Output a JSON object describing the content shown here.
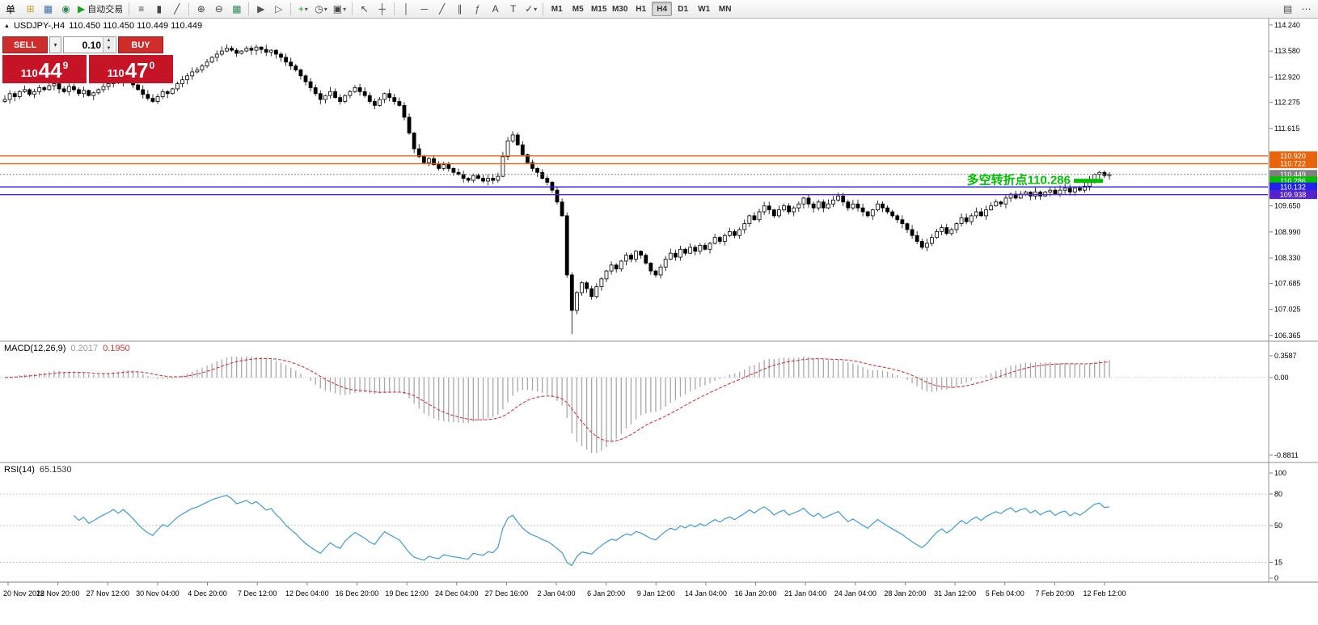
{
  "toolbar": {
    "menu_label": "单",
    "auto_trading_label": "自动交易",
    "buttons": [
      {
        "name": "new-order",
        "glyph": "⊞",
        "color": "#c8a126"
      },
      {
        "name": "chart-window",
        "glyph": "▦",
        "color": "#3a6ea5"
      },
      {
        "name": "market-watch",
        "glyph": "◉",
        "color": "#2e8b57"
      },
      {
        "name": "auto-trading",
        "glyph": "▶",
        "color": "#1fa11f",
        "label": true
      },
      {
        "sep": true
      },
      {
        "name": "bar-chart",
        "glyph": "≡"
      },
      {
        "name": "candlestick-chart",
        "glyph": "▮"
      },
      {
        "name": "line-chart",
        "glyph": "╱"
      },
      {
        "sep": true
      },
      {
        "name": "zoom-in",
        "glyph": "⊕"
      },
      {
        "name": "zoom-out",
        "glyph": "⊖"
      },
      {
        "name": "tile-windows",
        "glyph": "▦",
        "color": "#2e8b57"
      },
      {
        "sep": true
      },
      {
        "name": "auto-scroll",
        "glyph": "▶",
        "color": "#555"
      },
      {
        "name": "chart-shift",
        "glyph": "▷",
        "color": "#555"
      },
      {
        "sep": true
      },
      {
        "name": "add-indicator",
        "glyph": "+",
        "color": "#1fa11f",
        "dropdown": true
      },
      {
        "name": "periods-menu",
        "glyph": "◷",
        "dropdown": true
      },
      {
        "name": "templates-menu",
        "glyph": "▣",
        "dropdown": true
      },
      {
        "sep": true
      },
      {
        "name": "cursor",
        "glyph": "↖"
      },
      {
        "name": "crosshair",
        "glyph": "┼"
      },
      {
        "sep": true
      },
      {
        "name": "vertical-line",
        "glyph": "│"
      },
      {
        "name": "horizontal-line",
        "glyph": "─"
      },
      {
        "name": "trendline",
        "glyph": "╱"
      },
      {
        "name": "equidistant-channel",
        "glyph": "∥"
      },
      {
        "name": "fibonacci",
        "glyph": "ƒ",
        "color": "#555"
      },
      {
        "name": "text",
        "glyph": "A"
      },
      {
        "name": "text-label",
        "glyph": "T"
      },
      {
        "name": "arrow-tools",
        "glyph": "✓",
        "dropdown": true
      },
      {
        "sep": true
      }
    ],
    "timeframes": [
      "M1",
      "M5",
      "M15",
      "M30",
      "H1",
      "H4",
      "D1",
      "W1",
      "MN"
    ],
    "active_timeframe": "H4",
    "right_buttons": [
      {
        "name": "indicator-list",
        "glyph": "▤"
      },
      {
        "name": "more-tools",
        "glyph": "⋯"
      }
    ]
  },
  "trade_panel": {
    "sell_label": "SELL",
    "buy_label": "BUY",
    "volume": "0.10",
    "sell_price": {
      "small": "110",
      "big": "44",
      "sup": "9"
    },
    "buy_price": {
      "small": "110",
      "big": "47",
      "sup": "0"
    }
  },
  "main_chart": {
    "title": "USDJPY-,H4",
    "ohlc_text": "110.450 110.450 110.449 110.449",
    "annotation": {
      "text": "多空转折点110.286",
      "price": 110.286,
      "color": "#00c000"
    },
    "y_ticks": [
      "114.240",
      "113.580",
      "112.920",
      "112.275",
      "111.615",
      "109.650",
      "108.990",
      "108.330",
      "107.685",
      "107.025",
      "106.365"
    ],
    "price_lines": [
      {
        "price": 110.92,
        "label": "110.920",
        "color": "#e8650e",
        "style": "solid"
      },
      {
        "price": 110.722,
        "label": "110.722",
        "color": "#e8650e",
        "style": "solid"
      },
      {
        "price": 110.449,
        "label": "110.449",
        "color": "#808080",
        "style": "dotted"
      },
      {
        "price": 110.286,
        "label": "110.286",
        "color": "#00c000",
        "style": "marker"
      },
      {
        "price": 110.132,
        "label": "110.132",
        "color": "#2222ee",
        "style": "solid"
      },
      {
        "price": 109.938,
        "label": "109.938",
        "color": "#5522cc",
        "style": "solid"
      }
    ]
  },
  "macd_panel": {
    "name": "MACD(12,26,9)",
    "value_main": "0.2017",
    "value_signal": "0.1950",
    "scale_top": "0.3587",
    "scale_zero": "0.00",
    "scale_bottom": "-0.8811"
  },
  "rsi_panel": {
    "name": "RSI(14)",
    "value": "65.1530",
    "levels": [
      "100",
      "80",
      "50",
      "15",
      "0"
    ],
    "dashed_levels": [
      80,
      50,
      15
    ]
  },
  "chart_data": {
    "type": "candlestick",
    "symbol": "USDJPY",
    "timeframe": "H4",
    "last_price": 110.449,
    "ylim": [
      106.3,
      114.3
    ],
    "closes": [
      112.35,
      112.5,
      112.42,
      112.55,
      112.6,
      112.48,
      112.55,
      112.65,
      112.6,
      112.7,
      112.75,
      112.62,
      112.55,
      112.68,
      112.6,
      112.5,
      112.58,
      112.45,
      112.52,
      112.6,
      112.68,
      112.75,
      112.85,
      112.78,
      112.9,
      112.82,
      112.72,
      112.6,
      112.48,
      112.38,
      112.3,
      112.42,
      112.55,
      112.5,
      112.62,
      112.75,
      112.85,
      112.95,
      113.05,
      113.1,
      113.2,
      113.3,
      113.42,
      113.5,
      113.58,
      113.65,
      113.6,
      113.52,
      113.58,
      113.65,
      113.6,
      113.68,
      113.62,
      113.55,
      113.6,
      113.5,
      113.42,
      113.3,
      113.2,
      113.1,
      112.95,
      112.8,
      112.65,
      112.5,
      112.35,
      112.45,
      112.55,
      112.4,
      112.3,
      112.45,
      112.55,
      112.65,
      112.55,
      112.45,
      112.3,
      112.2,
      112.35,
      112.5,
      112.4,
      112.3,
      112.2,
      111.9,
      111.5,
      111.1,
      110.9,
      110.75,
      110.85,
      110.7,
      110.6,
      110.7,
      110.6,
      110.5,
      110.45,
      110.35,
      110.3,
      110.42,
      110.35,
      110.28,
      110.35,
      110.3,
      110.4,
      110.9,
      111.3,
      111.45,
      111.2,
      110.95,
      110.75,
      110.6,
      110.5,
      110.35,
      110.25,
      110.05,
      109.75,
      109.4,
      107.9,
      107.0,
      107.45,
      107.7,
      107.55,
      107.35,
      107.6,
      107.8,
      108.0,
      108.15,
      108.05,
      108.25,
      108.4,
      108.3,
      108.5,
      108.4,
      108.2,
      108.0,
      107.9,
      108.1,
      108.3,
      108.45,
      108.35,
      108.55,
      108.45,
      108.6,
      108.5,
      108.65,
      108.55,
      108.7,
      108.85,
      108.75,
      108.9,
      109.0,
      108.9,
      109.05,
      109.2,
      109.4,
      109.3,
      109.5,
      109.65,
      109.55,
      109.4,
      109.55,
      109.65,
      109.5,
      109.6,
      109.7,
      109.85,
      109.7,
      109.6,
      109.75,
      109.6,
      109.7,
      109.8,
      109.9,
      109.75,
      109.6,
      109.7,
      109.6,
      109.5,
      109.4,
      109.55,
      109.7,
      109.6,
      109.5,
      109.4,
      109.3,
      109.2,
      109.05,
      108.9,
      108.75,
      108.6,
      108.7,
      108.85,
      109.0,
      109.1,
      108.95,
      109.05,
      109.2,
      109.35,
      109.25,
      109.4,
      109.5,
      109.4,
      109.55,
      109.65,
      109.75,
      109.7,
      109.85,
      109.95,
      109.85,
      109.95,
      110.0,
      109.9,
      110.0,
      109.9,
      110.0,
      110.05,
      109.95,
      110.05,
      110.1,
      110.0,
      110.1,
      110.05,
      110.15,
      110.3,
      110.45,
      110.5,
      110.42,
      110.449
    ],
    "low_overrides": [
      {
        "index": 115,
        "low": 106.4
      }
    ],
    "indicators": {
      "macd": {
        "fast": 12,
        "slow": 26,
        "signal": 9
      },
      "rsi": {
        "period": 14
      }
    },
    "x_labels": [
      "20 Nov 2018",
      "22 Nov 20:00",
      "27 Nov 12:00",
      "30 Nov 04:00",
      "4 Dec 20:00",
      "7 Dec 12:00",
      "12 Dec 04:00",
      "16 Dec 20:00",
      "19 Dec 12:00",
      "24 Dec 04:00",
      "27 Dec 16:00",
      "2 Jan 04:00",
      "6 Jan 20:00",
      "9 Jan 12:00",
      "14 Jan 04:00",
      "16 Jan 20:00",
      "21 Jan 04:00",
      "24 Jan 04:00",
      "28 Jan 20:00",
      "31 Jan 12:00",
      "5 Feb 04:00",
      "7 Feb 20:00",
      "12 Feb 12:00"
    ]
  }
}
